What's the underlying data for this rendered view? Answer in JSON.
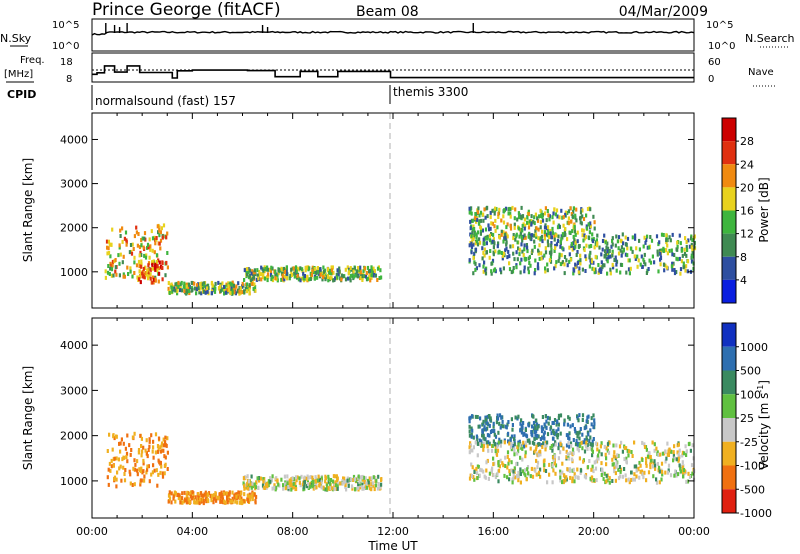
{
  "header": {
    "station": "Prince George (fitACF)",
    "beam": "Beam 08",
    "date": "04/Mar/2009"
  },
  "chart_data": [
    {
      "type": "line",
      "panel": "noise",
      "left_label": "N.Sky",
      "right_label": "N.Search",
      "ytick_labels_left": [
        "10^5",
        "10^0"
      ],
      "ytick_labels_right": [
        "10^5",
        "10^0"
      ]
    },
    {
      "type": "line",
      "panel": "frequency",
      "left_label": "Freq.\n[MHz]",
      "right_label": "Nave",
      "ytick_labels_left": [
        "18",
        "8"
      ],
      "ytick_labels_right": [
        "60",
        "0"
      ],
      "x_hours": [
        0,
        0.2,
        0.5,
        0.9,
        1.4,
        1.9,
        2.5,
        3.2,
        3.4,
        4.0,
        6.2,
        7.3,
        7.8,
        8.3,
        9.0,
        9.8,
        10.2,
        11.9,
        24
      ],
      "freq_mhz": [
        11.5,
        12.2,
        15.3,
        12.5,
        15.3,
        12.3,
        12.3,
        9.8,
        13.1,
        13.4,
        13.2,
        10.4,
        10.4,
        12.8,
        10.4,
        12.8,
        12.8,
        10.0,
        10.0
      ]
    },
    {
      "type": "table",
      "panel": "cpid",
      "label": "CPID",
      "programs": [
        {
          "name": "normalsound (fast) 157",
          "start_hour": 0
        },
        {
          "name": "themis 3300",
          "start_hour": 12
        }
      ]
    },
    {
      "type": "heatmap",
      "panel": "power",
      "ylabel": "Slant Range [km]",
      "yticks": [
        1000,
        2000,
        3000,
        4000
      ],
      "ylim": [
        180,
        4600
      ],
      "colorbar_label": "Power [dB]",
      "colorbar_ticks": [
        4,
        8,
        12,
        16,
        20,
        24,
        28
      ],
      "colorbar_range": [
        0,
        32
      ],
      "colors": [
        "#0a1fe0",
        "#2e4fa0",
        "#3f8a52",
        "#3eb53e",
        "#e8d21e",
        "#f08a10",
        "#e03010",
        "#cc0000"
      ],
      "echo_regions": [
        {
          "t": [
            0.5,
            3.0
          ],
          "r": [
            900,
            2100
          ],
          "level": 22
        },
        {
          "t": [
            1.8,
            2.8
          ],
          "r": [
            800,
            1300
          ],
          "level": 28
        },
        {
          "t": [
            3.0,
            6.5
          ],
          "r": [
            550,
            800
          ],
          "level": 18
        },
        {
          "t": [
            6.0,
            11.5
          ],
          "r": [
            850,
            1150
          ],
          "level": 18
        },
        {
          "t": [
            15.0,
            20.0
          ],
          "r": [
            1800,
            2500
          ],
          "level": 18
        },
        {
          "t": [
            15.0,
            24.0
          ],
          "r": [
            1000,
            1900
          ],
          "level": 16
        }
      ]
    },
    {
      "type": "heatmap",
      "panel": "velocity",
      "ylabel": "Slant Range [km]",
      "yticks": [
        1000,
        2000,
        3000,
        4000
      ],
      "ylim": [
        180,
        4600
      ],
      "colorbar_label": "Velocity [m s^-1]",
      "colorbar_ticks": [
        1000,
        500,
        100,
        25,
        -25,
        -100,
        -500,
        -1000
      ],
      "colors": [
        "#1030c0",
        "#2e6fb0",
        "#3a8a60",
        "#60c040",
        "#c8c8c8",
        "#f0b020",
        "#f07010",
        "#e02010"
      ],
      "echo_regions": [
        {
          "t": [
            0.5,
            3.0
          ],
          "r": [
            900,
            2100
          ],
          "velocity": -100
        },
        {
          "t": [
            3.0,
            6.5
          ],
          "r": [
            550,
            800
          ],
          "velocity": -100
        },
        {
          "t": [
            6.0,
            11.5
          ],
          "r": [
            850,
            1150
          ],
          "velocity": 0
        },
        {
          "t": [
            15.0,
            20.0
          ],
          "r": [
            1800,
            2500
          ],
          "velocity": 300
        },
        {
          "t": [
            15.0,
            24.0
          ],
          "r": [
            1000,
            1900
          ],
          "velocity": 0
        }
      ]
    }
  ],
  "x_axis": {
    "label": "Time UT",
    "tick_labels": [
      "00:00",
      "04:00",
      "08:00",
      "12:00",
      "16:00",
      "20:00",
      "00:00"
    ],
    "range_hours": [
      0,
      24
    ]
  }
}
